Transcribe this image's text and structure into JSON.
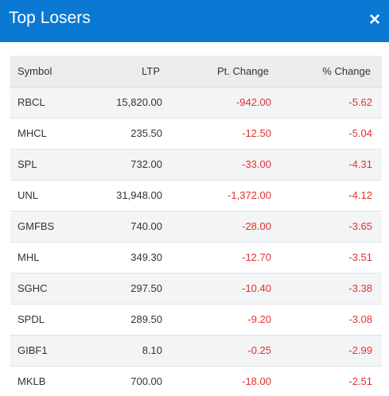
{
  "header": {
    "title": "Top Losers",
    "close_glyph": "×"
  },
  "table": {
    "columns": {
      "symbol": "Symbol",
      "ltp": "LTP",
      "pt_change": "Pt. Change",
      "pct_change": "% Change"
    },
    "rows": [
      {
        "symbol": "RBCL",
        "ltp": "15,820.00",
        "pt_change": "-942.00",
        "pct_change": "-5.62"
      },
      {
        "symbol": "MHCL",
        "ltp": "235.50",
        "pt_change": "-12.50",
        "pct_change": "-5.04"
      },
      {
        "symbol": "SPL",
        "ltp": "732.00",
        "pt_change": "-33.00",
        "pct_change": "-4.31"
      },
      {
        "symbol": "UNL",
        "ltp": "31,948.00",
        "pt_change": "-1,372.00",
        "pct_change": "-4.12"
      },
      {
        "symbol": "GMFBS",
        "ltp": "740.00",
        "pt_change": "-28.00",
        "pct_change": "-3.65"
      },
      {
        "symbol": "MHL",
        "ltp": "349.30",
        "pt_change": "-12.70",
        "pct_change": "-3.51"
      },
      {
        "symbol": "SGHC",
        "ltp": "297.50",
        "pt_change": "-10.40",
        "pct_change": "-3.38"
      },
      {
        "symbol": "SPDL",
        "ltp": "289.50",
        "pt_change": "-9.20",
        "pct_change": "-3.08"
      },
      {
        "symbol": "GIBF1",
        "ltp": "8.10",
        "pt_change": "-0.25",
        "pct_change": "-2.99"
      },
      {
        "symbol": "MKLB",
        "ltp": "700.00",
        "pt_change": "-18.00",
        "pct_change": "-2.51"
      }
    ]
  },
  "colors": {
    "header_bg": "#0b78d4",
    "negative": "#e1322f",
    "text": "#333333"
  }
}
